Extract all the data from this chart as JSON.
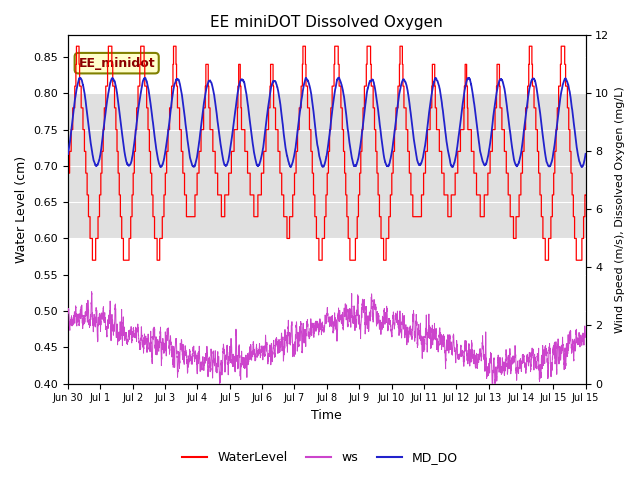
{
  "title": "EE miniDOT Dissolved Oxygen",
  "xlabel": "Time",
  "ylabel_left": "Water Level (cm)",
  "ylabel_right": "Wind Speed (m/s), Dissolved Oxygen (mg/L)",
  "annotation": "EE_minidot",
  "left_ylim": [
    0.4,
    0.88
  ],
  "right_ylim": [
    0,
    12
  ],
  "left_yticks": [
    0.4,
    0.45,
    0.5,
    0.55,
    0.6,
    0.65,
    0.7,
    0.75,
    0.8,
    0.85
  ],
  "right_yticks": [
    0,
    2,
    4,
    6,
    8,
    10,
    12
  ],
  "bg_gray_band": [
    0.6,
    0.8
  ],
  "wl_color": "#FF0000",
  "ws_color": "#CC44CC",
  "do_color": "#2222CC",
  "legend_labels": [
    "WaterLevel",
    "ws",
    "MD_DO"
  ],
  "seed": 42
}
